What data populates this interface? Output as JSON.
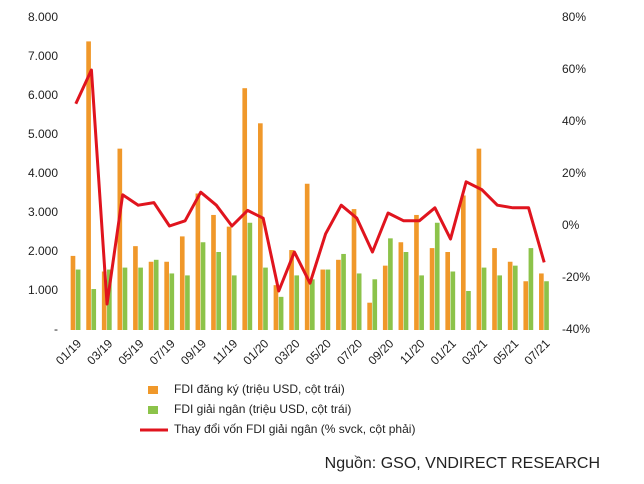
{
  "chart_data": {
    "type": "bar",
    "categories": [
      "01/19",
      null,
      "03/19",
      null,
      "05/19",
      null,
      "07/19",
      null,
      "09/19",
      null,
      "11/19",
      null,
      "01/20",
      null,
      "03/20",
      null,
      "05/20",
      null,
      "07/20",
      null,
      "09/20",
      null,
      "11/20",
      null,
      "01/21",
      null,
      "03/21",
      null,
      "05/21",
      null,
      "07/21"
    ],
    "series": [
      {
        "name": "FDI đăng ký (triệu USD, cột trái)",
        "color": "#f0982a",
        "type": "bar",
        "values": [
          1900,
          7400,
          1500,
          4650,
          2150,
          1750,
          1750,
          2400,
          3500,
          2950,
          2650,
          6200,
          5300,
          1150,
          2050,
          3750,
          1550,
          1800,
          3100,
          700,
          1650,
          2250,
          2950,
          2100,
          2000,
          3450,
          4650,
          2100,
          1750,
          1250,
          1450
        ]
      },
      {
        "name": "FDI giải ngân (triệu USD, cột trái)",
        "color": "#8cc34a",
        "type": "bar",
        "values": [
          1550,
          1050,
          1550,
          1600,
          1600,
          1800,
          1450,
          1400,
          2250,
          2000,
          1400,
          2750,
          1600,
          850,
          1400,
          1300,
          1550,
          1950,
          1450,
          1300,
          2350,
          2000,
          1400,
          2750,
          1500,
          1000,
          1600,
          1400,
          1650,
          2100,
          1250
        ]
      },
      {
        "name": "Thay đổi vốn FDI giải ngân (% svck, cột phải)",
        "color": "#e0141e",
        "type": "line",
        "axis": "y2",
        "values": [
          47,
          60,
          -30,
          12,
          8,
          9,
          0,
          2,
          13,
          8,
          0,
          6,
          3,
          -25,
          -10,
          -22,
          -3,
          8,
          3,
          -10,
          5,
          2,
          2,
          7,
          -5,
          17,
          14,
          8,
          7,
          7,
          -14
        ]
      }
    ],
    "ylim": [
      0,
      8000
    ],
    "yticks": [
      {
        "value": 0,
        "label": "-"
      },
      {
        "value": 1000,
        "label": "1.000"
      },
      {
        "value": 2000,
        "label": "2.000"
      },
      {
        "value": 3000,
        "label": "3.000"
      },
      {
        "value": 4000,
        "label": "4.000"
      },
      {
        "value": 5000,
        "label": "5.000"
      },
      {
        "value": 6000,
        "label": "6.000"
      },
      {
        "value": 7000,
        "label": "7.000"
      },
      {
        "value": 8000,
        "label": "8.000"
      }
    ],
    "y2lim": [
      -40,
      80
    ],
    "y2ticks": [
      {
        "value": -40,
        "label": "-40%"
      },
      {
        "value": -20,
        "label": "-20%"
      },
      {
        "value": 0,
        "label": "0%"
      },
      {
        "value": 20,
        "label": "20%"
      },
      {
        "value": 40,
        "label": "40%"
      },
      {
        "value": 60,
        "label": "60%"
      },
      {
        "value": 80,
        "label": "80%"
      }
    ],
    "source": "Nguồn: GSO, VNDIRECT RESEARCH"
  }
}
